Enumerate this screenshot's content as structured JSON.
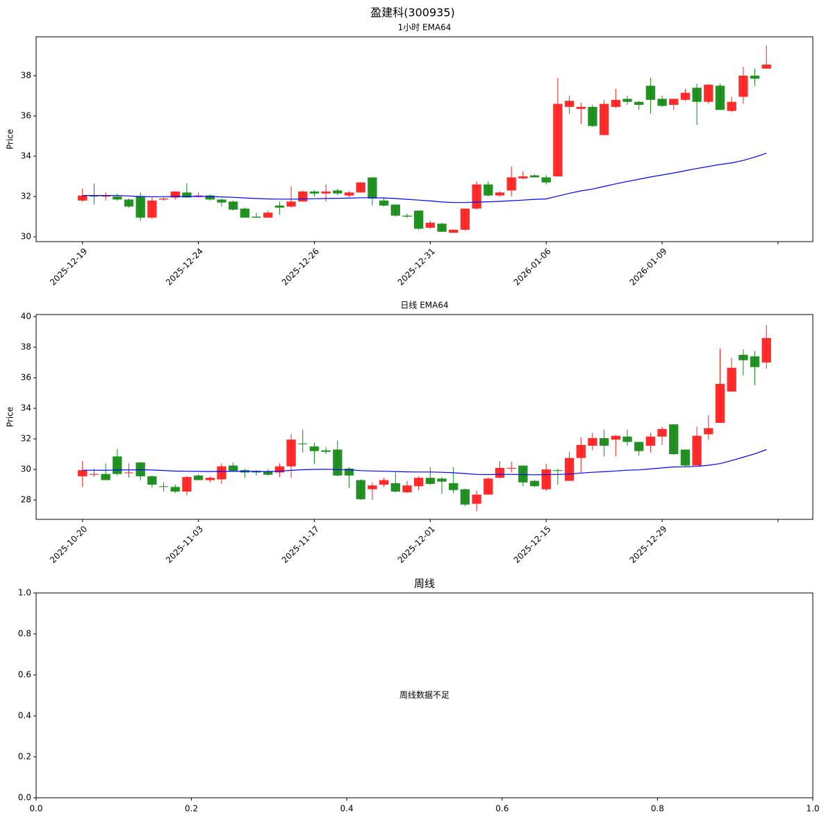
{
  "title": "盈建科(300935)",
  "chart_data": [
    {
      "type": "candlestick",
      "title": "1小时 EMA64",
      "ylabel": "Price",
      "xlim": [
        -4,
        63
      ],
      "xticks": [
        {
          "value": 0,
          "label": "2025-12-19"
        },
        {
          "value": 10,
          "label": "2025-12-24"
        },
        {
          "value": 20,
          "label": "2025-12-26"
        },
        {
          "value": 30,
          "label": "2025-12-31"
        },
        {
          "value": 40,
          "label": "2026-01-06"
        },
        {
          "value": 50,
          "label": "2026-01-09"
        },
        {
          "value": 60,
          "label": null
        }
      ],
      "ylim": [
        29.76,
        39.93
      ],
      "yticks": [
        30,
        32,
        34,
        36,
        38
      ],
      "up_color": "#ff1a1a",
      "down_color": "#118811",
      "open": [
        31.8,
        32.05,
        32.0,
        32.0,
        31.85,
        32.0,
        30.95,
        31.85,
        31.95,
        32.2,
        32.0,
        32.05,
        31.85,
        31.75,
        31.4,
        31.0,
        30.95,
        31.55,
        31.5,
        31.75,
        32.25,
        32.15,
        32.3,
        32.05,
        32.2,
        32.95,
        31.8,
        31.6,
        31.05,
        31.3,
        30.45,
        30.65,
        30.2,
        30.35,
        31.4,
        32.6,
        32.05,
        32.3,
        32.9,
        33.05,
        32.95,
        33.0,
        36.45,
        36.35,
        36.45,
        35.05,
        36.45,
        36.85,
        36.7,
        37.5,
        36.85,
        36.55,
        36.8,
        37.4,
        36.7,
        37.5,
        36.25,
        36.95,
        38.0,
        38.35
      ],
      "high": [
        32.4,
        32.65,
        32.2,
        32.15,
        31.9,
        32.2,
        32.0,
        31.95,
        32.25,
        32.65,
        32.2,
        32.1,
        31.9,
        31.8,
        31.45,
        31.2,
        31.3,
        31.75,
        32.5,
        32.3,
        32.3,
        32.6,
        32.4,
        32.25,
        32.7,
        32.95,
        31.95,
        31.6,
        31.15,
        31.3,
        30.8,
        30.7,
        30.35,
        31.4,
        32.75,
        32.75,
        32.25,
        33.5,
        33.25,
        33.1,
        33.05,
        37.9,
        37.0,
        36.65,
        36.55,
        36.8,
        37.35,
        37.0,
        36.75,
        37.9,
        37.0,
        36.85,
        37.35,
        37.6,
        37.6,
        37.6,
        36.95,
        38.45,
        38.35,
        39.5
      ],
      "low": [
        31.75,
        31.6,
        31.8,
        31.8,
        31.45,
        30.8,
        30.9,
        31.8,
        31.85,
        31.95,
        31.95,
        31.8,
        31.5,
        31.3,
        30.95,
        30.95,
        30.95,
        31.1,
        31.45,
        31.75,
        32.0,
        31.75,
        32.05,
        31.95,
        32.2,
        31.55,
        31.5,
        31.0,
        30.95,
        30.35,
        30.4,
        30.25,
        30.2,
        30.3,
        31.35,
        32.0,
        32.0,
        32.0,
        32.85,
        32.95,
        32.6,
        33.0,
        36.1,
        35.6,
        35.45,
        35.05,
        36.4,
        36.55,
        36.3,
        36.1,
        36.45,
        36.3,
        36.75,
        35.55,
        36.6,
        36.3,
        36.2,
        36.6,
        37.5,
        38.35
      ],
      "close": [
        32.05,
        32.0,
        32.05,
        31.85,
        31.5,
        30.95,
        31.8,
        31.9,
        32.25,
        31.95,
        32.05,
        31.85,
        31.7,
        31.35,
        30.95,
        30.95,
        31.2,
        31.45,
        31.75,
        32.25,
        32.15,
        32.25,
        32.15,
        32.2,
        32.7,
        31.9,
        31.55,
        31.05,
        31.0,
        30.4,
        30.7,
        30.25,
        30.35,
        31.4,
        32.6,
        32.05,
        32.2,
        32.95,
        33.0,
        32.95,
        32.7,
        36.6,
        36.75,
        36.45,
        35.5,
        36.6,
        36.8,
        36.7,
        36.55,
        36.8,
        36.5,
        36.85,
        37.15,
        36.7,
        37.55,
        36.3,
        36.7,
        38.0,
        37.85,
        38.55
      ],
      "line": {
        "color": "#0000ff",
        "values": [
          32.05,
          32.05,
          32.05,
          32.05,
          32.03,
          32.0,
          31.99,
          31.99,
          32.0,
          32.0,
          32.0,
          32.0,
          31.98,
          31.96,
          31.93,
          31.9,
          31.88,
          31.87,
          31.87,
          31.88,
          31.89,
          31.9,
          31.91,
          31.92,
          31.94,
          31.94,
          31.93,
          31.9,
          31.86,
          31.82,
          31.78,
          31.73,
          31.7,
          31.7,
          31.72,
          31.74,
          31.76,
          31.79,
          31.82,
          31.86,
          31.88,
          32.02,
          32.16,
          32.28,
          32.37,
          32.5,
          32.63,
          32.75,
          32.86,
          32.97,
          33.07,
          33.17,
          33.28,
          33.39,
          33.49,
          33.59,
          33.67,
          33.79,
          33.96,
          34.15
        ]
      }
    },
    {
      "type": "candlestick",
      "title": "日线 EMA64",
      "ylabel": "Price",
      "xlim": [
        -4,
        63
      ],
      "xticks": [
        {
          "value": 0,
          "label": "2025-10-20"
        },
        {
          "value": 10,
          "label": "2025-11-03"
        },
        {
          "value": 20,
          "label": "2025-11-17"
        },
        {
          "value": 30,
          "label": "2025-12-01"
        },
        {
          "value": 40,
          "label": "2025-12-15"
        },
        {
          "value": 50,
          "label": "2025-12-29"
        },
        {
          "value": 60,
          "label": null
        }
      ],
      "ylim": [
        26.73,
        40.14
      ],
      "yticks": [
        28,
        30,
        32,
        34,
        36,
        38,
        40
      ],
      "up_color": "#ff1a1a",
      "down_color": "#118811",
      "open": [
        29.55,
        29.65,
        29.7,
        30.85,
        29.75,
        30.45,
        29.55,
        28.9,
        28.85,
        28.55,
        29.6,
        29.3,
        29.35,
        30.25,
        29.95,
        29.9,
        29.85,
        29.8,
        30.2,
        31.7,
        31.5,
        31.25,
        31.3,
        30.05,
        29.3,
        28.7,
        29.0,
        29.1,
        28.5,
        28.9,
        29.45,
        29.4,
        29.1,
        28.7,
        27.75,
        28.35,
        29.45,
        30.05,
        30.25,
        29.25,
        28.7,
        29.95,
        29.25,
        30.75,
        31.55,
        32.05,
        31.95,
        32.15,
        31.8,
        31.55,
        32.15,
        32.95,
        31.3,
        30.25,
        32.3,
        33.05,
        35.1,
        37.5,
        37.4,
        37.0
      ],
      "high": [
        30.55,
        30.05,
        30.4,
        31.35,
        30.4,
        30.5,
        29.6,
        29.15,
        29.0,
        29.55,
        29.7,
        29.55,
        30.4,
        30.45,
        30.05,
        29.95,
        30.0,
        30.4,
        32.3,
        32.6,
        31.75,
        31.45,
        31.9,
        30.15,
        29.35,
        29.15,
        29.45,
        29.8,
        29.25,
        29.55,
        30.15,
        29.5,
        30.15,
        28.75,
        28.6,
        29.45,
        30.55,
        30.5,
        30.25,
        29.3,
        30.35,
        30.05,
        31.15,
        32.1,
        32.4,
        32.6,
        32.25,
        32.6,
        31.8,
        32.4,
        32.8,
        32.95,
        31.3,
        32.8,
        33.55,
        37.9,
        37.3,
        37.85,
        37.75,
        39.45
      ],
      "low": [
        28.85,
        29.5,
        29.3,
        29.6,
        29.45,
        29.3,
        28.8,
        28.55,
        28.45,
        28.3,
        29.3,
        29.15,
        29.05,
        29.85,
        29.45,
        29.6,
        29.6,
        29.5,
        29.45,
        31.1,
        30.35,
        31.0,
        29.55,
        28.8,
        28.0,
        28.0,
        28.85,
        28.5,
        28.45,
        28.65,
        29.0,
        28.4,
        28.45,
        27.6,
        27.25,
        28.35,
        29.4,
        29.8,
        28.9,
        28.85,
        28.6,
        29.0,
        29.25,
        29.8,
        31.25,
        30.85,
        30.85,
        31.55,
        30.9,
        31.1,
        31.6,
        30.95,
        30.2,
        30.25,
        31.95,
        33.05,
        35.1,
        36.15,
        35.5,
        36.6
      ],
      "close": [
        29.95,
        29.7,
        29.3,
        29.7,
        29.8,
        29.55,
        29.0,
        28.85,
        28.55,
        29.5,
        29.3,
        29.45,
        30.2,
        29.9,
        29.8,
        29.8,
        29.65,
        30.2,
        31.95,
        31.65,
        31.2,
        31.15,
        29.6,
        29.6,
        28.05,
        28.95,
        29.3,
        28.55,
        28.95,
        29.45,
        29.05,
        29.2,
        28.65,
        27.7,
        28.35,
        29.4,
        30.1,
        30.1,
        29.15,
        28.9,
        30.0,
        29.9,
        30.75,
        31.6,
        32.05,
        31.55,
        32.2,
        31.8,
        31.2,
        32.15,
        32.65,
        31.0,
        30.25,
        32.2,
        32.7,
        35.6,
        36.65,
        37.15,
        36.7,
        38.6
      ],
      "line": {
        "color": "#0000ff",
        "values": [
          29.95,
          29.95,
          29.94,
          29.97,
          29.96,
          29.98,
          29.96,
          29.93,
          29.89,
          29.88,
          29.87,
          29.86,
          29.87,
          29.87,
          29.87,
          29.87,
          29.86,
          29.88,
          29.94,
          29.98,
          30.0,
          30.01,
          29.99,
          29.97,
          29.92,
          29.9,
          29.88,
          29.86,
          29.84,
          29.83,
          29.83,
          29.81,
          29.78,
          29.73,
          29.67,
          29.66,
          29.67,
          29.67,
          29.66,
          29.65,
          29.66,
          29.67,
          29.7,
          29.76,
          29.81,
          29.85,
          29.9,
          29.95,
          29.97,
          30.03,
          30.1,
          30.16,
          30.17,
          30.2,
          30.27,
          30.38,
          30.58,
          30.8,
          31.02,
          31.3
        ]
      }
    },
    {
      "type": "empty",
      "title": "周线",
      "message": "周线数据不足",
      "xlim": [
        0,
        1
      ],
      "ylim": [
        0,
        1
      ],
      "xticks": [
        {
          "value": 0,
          "label": "0.0"
        },
        {
          "value": 0.2,
          "label": "0.2"
        },
        {
          "value": 0.4,
          "label": "0.4"
        },
        {
          "value": 0.6,
          "label": "0.6"
        },
        {
          "value": 0.8,
          "label": "0.8"
        },
        {
          "value": 1,
          "label": "1.0"
        }
      ],
      "yticks": [
        {
          "value": 0,
          "label": "0.0"
        },
        {
          "value": 0.2,
          "label": "0.2"
        },
        {
          "value": 0.4,
          "label": "0.4"
        },
        {
          "value": 0.6,
          "label": "0.6"
        },
        {
          "value": 0.8,
          "label": "0.8"
        },
        {
          "value": 1,
          "label": "1.0"
        }
      ]
    }
  ]
}
